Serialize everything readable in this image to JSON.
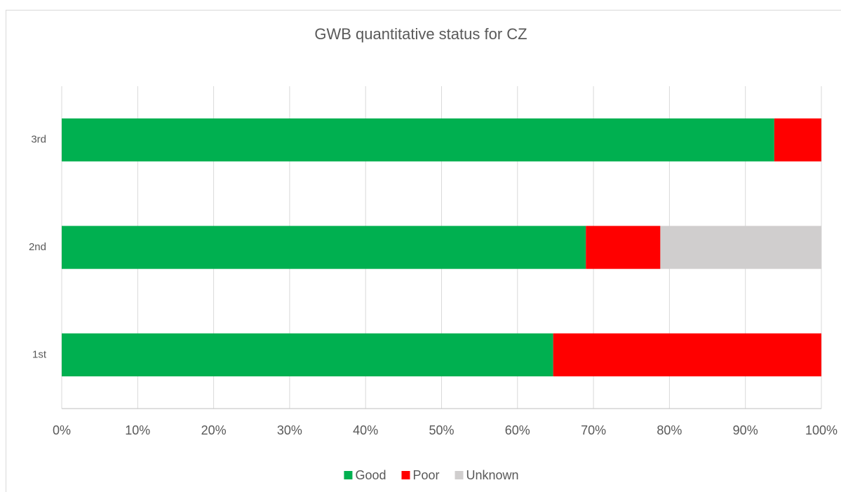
{
  "chart_data": {
    "type": "stacked-bar-horizontal",
    "title": "GWB quantitative status for CZ",
    "categories": [
      "1st",
      "2nd",
      "3rd"
    ],
    "series": [
      {
        "name": "Good",
        "color": "#00b050",
        "values": [
          64.7,
          69.0,
          93.8
        ]
      },
      {
        "name": "Poor",
        "color": "#ff0000",
        "values": [
          35.3,
          9.8,
          6.2
        ]
      },
      {
        "name": "Unknown",
        "color": "#d0cece",
        "values": [
          0,
          21.2,
          0
        ]
      }
    ],
    "xlim": [
      0,
      100
    ],
    "xticks": [
      {
        "value": 0,
        "label": "0%"
      },
      {
        "value": 10,
        "label": "10%"
      },
      {
        "value": 20,
        "label": "20%"
      },
      {
        "value": 30,
        "label": "30%"
      },
      {
        "value": 40,
        "label": "40%"
      },
      {
        "value": 50,
        "label": "50%"
      },
      {
        "value": 60,
        "label": "60%"
      },
      {
        "value": 70,
        "label": "70%"
      },
      {
        "value": 80,
        "label": "80%"
      },
      {
        "value": 90,
        "label": "90%"
      },
      {
        "value": 100,
        "label": "100%"
      }
    ],
    "grid": true,
    "legend": "bottom"
  }
}
